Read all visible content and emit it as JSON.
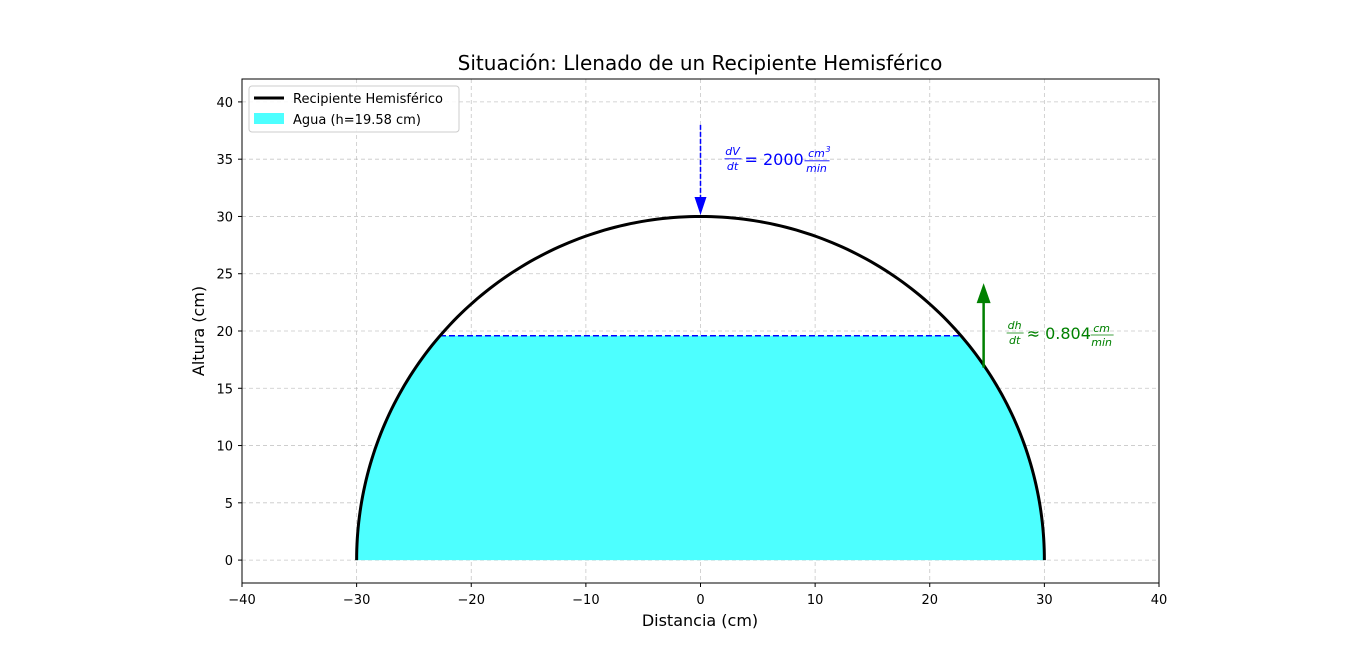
{
  "chart_data": {
    "type": "area",
    "title": "Situación: Llenado de un Recipiente Hemisférico",
    "xlabel": "Distancia (cm)",
    "ylabel": "Altura (cm)",
    "xlim": [
      -40,
      40
    ],
    "ylim": [
      -2,
      42
    ],
    "xticks": [
      -40,
      -30,
      -20,
      -10,
      0,
      10,
      20,
      30,
      40
    ],
    "yticks": [
      0,
      5,
      10,
      15,
      20,
      25,
      30,
      35,
      40
    ],
    "grid": true,
    "legend_position": "top-left",
    "radius": 30,
    "water_level": 19.58,
    "series": [
      {
        "name": "Recipiente Hemisférico",
        "kind": "line",
        "color": "#000000"
      },
      {
        "name": "Agua (h=19.58 cm)",
        "kind": "fill",
        "color": "#4dffff"
      }
    ],
    "annotations": {
      "inflow": {
        "x": 0,
        "y_start": 38,
        "y_end": 30.3,
        "color": "#0000ff",
        "lhs_num": "dV",
        "lhs_den": "dt",
        "equals": "= 2000",
        "unit_num": "cm",
        "unit_sup": "3",
        "unit_den": "min"
      },
      "rise": {
        "x": 24.7,
        "y_start": 16.8,
        "y_end": 24.0,
        "color": "#008000",
        "lhs_num": "dh",
        "lhs_den": "dt",
        "approx": "≈ 0.804",
        "unit_num": "cm",
        "unit_den": "min"
      }
    }
  }
}
